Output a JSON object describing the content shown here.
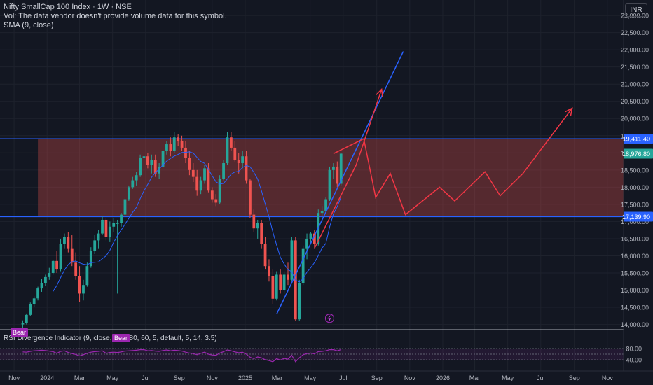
{
  "header": {
    "title": "Nifty SmallCap 100 Index · 1W · NSE",
    "vol_note": "Vol: The data vendor doesn't provide volume data for this symbol.",
    "sma_label": "SMA (9, close)"
  },
  "currency": "INR",
  "rsi": {
    "label": "RSI Divergence Indicator (9, close, 3, 1, 80, 60, 5, default, 5, 14, 3.5)",
    "badge_bear": "Bear",
    "y_ticks": [
      "80.00",
      "40.00"
    ]
  },
  "price_badges": {
    "upper": "19,411.40",
    "current": "18,976.80",
    "lower": "17,139.90"
  },
  "colors": {
    "background": "#131722",
    "up": "#26a69a",
    "down": "#ef5350",
    "sma": "#2962ff",
    "level_line": "#2962ff",
    "zone_fill": "#ef5350",
    "projection": "#f23645",
    "trendline": "#2962ff",
    "rsi": "#9c27b0",
    "current_badge": "#26a69a",
    "level_badge": "#2962ff"
  },
  "chart_data": {
    "type": "candlestick",
    "timeframe": "1W",
    "y_axis": {
      "ticks": [
        14000,
        14500,
        15000,
        15500,
        16000,
        16500,
        17000,
        17500,
        18000,
        18500,
        19000,
        19500,
        20000,
        20500,
        21000,
        21500,
        22000,
        22500,
        23000
      ],
      "tick_labels": [
        "14,000.00",
        "14,500.00",
        "15,000.00",
        "15,500.00",
        "16,000.00",
        "16,500.00",
        "17,000.00",
        "17,500.00",
        "18,000.00",
        "18,500.00",
        "19,000.00",
        "19,500.00",
        "20,000.00",
        "20,500.00",
        "21,000.00",
        "21,500.00",
        "22,000.00",
        "22,500.00",
        "23,000.00"
      ],
      "range": [
        13910,
        23450
      ]
    },
    "x_axis": {
      "tick_labels": [
        "Nov",
        "2024",
        "Mar",
        "May",
        "Jul",
        "Sep",
        "Nov",
        "2025",
        "Mar",
        "May",
        "Jul",
        "Sep",
        "Nov",
        "2026",
        "Mar",
        "May",
        "Jul",
        "Sep",
        "Nov"
      ],
      "tick_dates": [
        "2023-11-01",
        "2024-01-01",
        "2024-03-01",
        "2024-05-01",
        "2024-07-01",
        "2024-09-01",
        "2024-11-01",
        "2025-01-01",
        "2025-03-01",
        "2025-05-01",
        "2025-07-01",
        "2025-09-01",
        "2025-11-01",
        "2026-01-01",
        "2026-03-01",
        "2026-05-01",
        "2026-07-01",
        "2026-09-01",
        "2026-11-01"
      ],
      "range": [
        "2023-10-06",
        "2026-12-01"
      ]
    },
    "candles": {
      "start": "2023-11-17",
      "interval_days": 7,
      "ohlc": [
        [
          14000,
          14120,
          13900,
          14050
        ],
        [
          14050,
          14320,
          14000,
          14280
        ],
        [
          14280,
          14640,
          14250,
          14600
        ],
        [
          14600,
          14820,
          14520,
          14760
        ],
        [
          14760,
          15100,
          14700,
          15050
        ],
        [
          15050,
          15330,
          14950,
          15200
        ],
        [
          15200,
          15450,
          15120,
          15380
        ],
        [
          15380,
          15650,
          15300,
          15500
        ],
        [
          15500,
          15880,
          15450,
          15850
        ],
        [
          15850,
          16150,
          15500,
          15600
        ],
        [
          15600,
          16500,
          15550,
          16350
        ],
        [
          16350,
          16650,
          16200,
          16550
        ],
        [
          16550,
          16700,
          16100,
          16200
        ],
        [
          16200,
          16600,
          15700,
          15800
        ],
        [
          15800,
          16100,
          15300,
          15400
        ],
        [
          15400,
          15700,
          14650,
          14900
        ],
        [
          14900,
          15300,
          14700,
          15150
        ],
        [
          15150,
          15800,
          15100,
          15700
        ],
        [
          15700,
          16250,
          15650,
          16150
        ],
        [
          16150,
          16600,
          16050,
          16450
        ],
        [
          16450,
          16750,
          16200,
          16650
        ],
        [
          16650,
          17150,
          16600,
          17050
        ],
        [
          17050,
          17100,
          16450,
          16550
        ],
        [
          16550,
          17000,
          16400,
          16850
        ],
        [
          16850,
          17100,
          16700,
          16950
        ],
        [
          16950,
          17050,
          14900,
          16950
        ],
        [
          16950,
          17250,
          16850,
          17200
        ],
        [
          17200,
          17700,
          17150,
          17650
        ],
        [
          17650,
          18050,
          17600,
          18000
        ],
        [
          18000,
          18300,
          17950,
          18200
        ],
        [
          18200,
          18450,
          18050,
          18350
        ],
        [
          18350,
          18950,
          18300,
          18850
        ],
        [
          18850,
          19050,
          18700,
          18900
        ],
        [
          18900,
          19000,
          18550,
          18650
        ],
        [
          18650,
          18950,
          18400,
          18800
        ],
        [
          18800,
          18950,
          18300,
          18400
        ],
        [
          18400,
          18700,
          18250,
          18600
        ],
        [
          18600,
          19100,
          18550,
          19050
        ],
        [
          19050,
          19350,
          18950,
          19250
        ],
        [
          19250,
          19450,
          18900,
          19050
        ],
        [
          19050,
          19600,
          19000,
          19450
        ],
        [
          19450,
          19550,
          19200,
          19350
        ],
        [
          19350,
          19500,
          19050,
          19150
        ],
        [
          19150,
          19350,
          18700,
          18850
        ],
        [
          18850,
          19050,
          18350,
          18500
        ],
        [
          18500,
          18700,
          18150,
          18300
        ],
        [
          18300,
          18500,
          17750,
          17900
        ],
        [
          17900,
          18300,
          17800,
          18200
        ],
        [
          18200,
          18650,
          18100,
          18550
        ],
        [
          18550,
          18700,
          17850,
          17900
        ],
        [
          17900,
          18000,
          17550,
          17650
        ],
        [
          17650,
          17800,
          17450,
          17550
        ],
        [
          17550,
          18350,
          17500,
          18250
        ],
        [
          18250,
          18800,
          18200,
          18700
        ],
        [
          18700,
          19600,
          18650,
          19450
        ],
        [
          19450,
          19600,
          19050,
          19150
        ],
        [
          19150,
          19350,
          18750,
          18800
        ],
        [
          18800,
          19000,
          18400,
          18700
        ],
        [
          18700,
          19050,
          18550,
          18900
        ],
        [
          18900,
          19050,
          18100,
          18200
        ],
        [
          18200,
          18250,
          17100,
          17200
        ],
        [
          17200,
          17350,
          16700,
          16800
        ],
        [
          16800,
          17050,
          16500,
          16950
        ],
        [
          16950,
          17050,
          16200,
          16350
        ],
        [
          16350,
          16550,
          15600,
          15700
        ],
        [
          15700,
          15900,
          15250,
          15400
        ],
        [
          15400,
          15600,
          14600,
          14750
        ],
        [
          14750,
          15550,
          14700,
          15450
        ],
        [
          15450,
          15600,
          14900,
          15000
        ],
        [
          15000,
          15550,
          14900,
          15450
        ],
        [
          15450,
          15800,
          15150,
          15300
        ],
        [
          15300,
          16550,
          15250,
          16450
        ],
        [
          16450,
          16550,
          14100,
          14150
        ],
        [
          14150,
          15300,
          14100,
          15200
        ],
        [
          15200,
          16300,
          15150,
          16200
        ],
        [
          16200,
          16650,
          15900,
          16500
        ],
        [
          16500,
          16700,
          16350,
          16650
        ],
        [
          16650,
          16750,
          16200,
          16350
        ],
        [
          16350,
          17350,
          16300,
          17250
        ],
        [
          17250,
          17450,
          17100,
          17300
        ],
        [
          17300,
          17700,
          17250,
          17650
        ],
        [
          17650,
          18600,
          17600,
          18500
        ],
        [
          18500,
          18700,
          18250,
          18600
        ],
        [
          18600,
          18750,
          18000,
          18100
        ],
        [
          18100,
          19000,
          18050,
          18976.8
        ]
      ]
    },
    "sma": {
      "period": 9,
      "start_index": 8
    },
    "levels": [
      19411.4,
      17139.9
    ],
    "zone": {
      "from": "2023-12-15",
      "to": "2026-11-26",
      "y_range": [
        17139.9,
        19411.4
      ]
    },
    "trendlines": [
      {
        "points": [
          [
            "2025-02-28",
            14300
          ],
          [
            "2025-10-20",
            21950
          ]
        ]
      }
    ],
    "projections": [
      {
        "points": [
          [
            "2025-05-10",
            16250
          ],
          [
            "2025-07-25",
            18650
          ],
          [
            "2025-09-10",
            20850
          ]
        ],
        "arrow": true
      },
      {
        "points": [
          [
            "2025-06-13",
            18976.8
          ],
          [
            "2025-08-08",
            19411.4
          ],
          [
            "2025-08-30",
            17700
          ],
          [
            "2025-09-26",
            18400
          ],
          [
            "2025-10-24",
            17200
          ],
          [
            "2025-12-26",
            18000
          ],
          [
            "2026-01-23",
            17600
          ],
          [
            "2026-03-20",
            18450
          ],
          [
            "2026-04-17",
            17750
          ],
          [
            "2026-05-29",
            18400
          ],
          [
            "2026-08-28",
            20300
          ]
        ],
        "arrow": true
      }
    ],
    "event_marker": {
      "date": "2025-06-06",
      "y": 14180
    }
  },
  "rsi_data": {
    "range": [
      20,
      100
    ],
    "levels": [
      80,
      60,
      40
    ],
    "values": [
      68,
      67,
      70,
      72,
      73,
      74,
      73,
      71,
      69,
      63,
      70,
      72,
      66,
      62,
      59,
      54,
      58,
      63,
      67,
      69,
      70,
      72,
      63,
      66,
      67,
      66,
      68,
      71,
      72,
      73,
      74,
      76,
      76,
      72,
      73,
      71,
      70,
      73,
      75,
      72,
      74,
      73,
      71,
      67,
      64,
      62,
      58,
      63,
      67,
      60,
      57,
      56,
      64,
      69,
      75,
      72,
      68,
      65,
      67,
      60,
      49,
      44,
      50,
      47,
      40,
      37,
      33,
      44,
      39,
      45,
      42,
      56,
      33,
      47,
      58,
      62,
      64,
      61,
      69,
      70,
      72,
      76,
      76,
      72,
      76
    ],
    "bear_badges": [
      {
        "index": 0
      },
      {
        "index": 38
      }
    ]
  }
}
